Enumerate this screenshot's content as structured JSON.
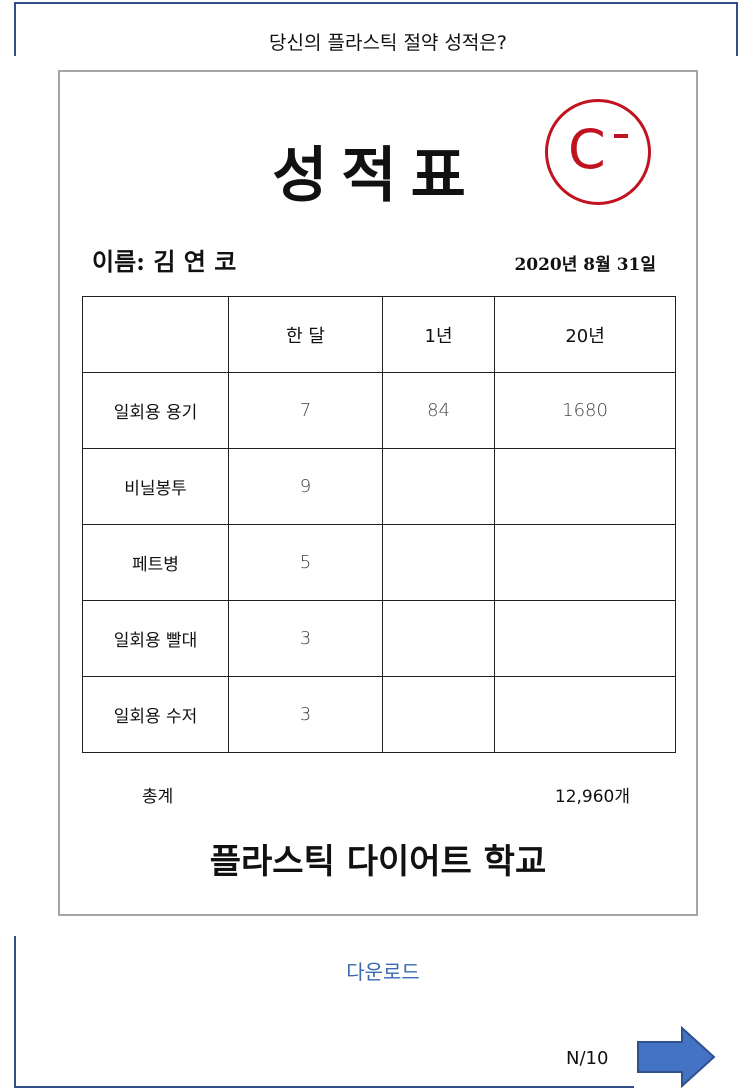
{
  "header": {
    "title": "당신의 플라스틱 절약 성적은?"
  },
  "report": {
    "title": "성적표",
    "grade": "C",
    "name_label": "이름: 김 연 코",
    "date": "2020년 8월 31일",
    "columns": [
      "",
      "한 달",
      "1년",
      "20년"
    ],
    "rows": [
      {
        "label": "일회용 용기",
        "cells": [
          "7",
          "84",
          "1680"
        ]
      },
      {
        "label": "비닐봉투",
        "cells": [
          "9",
          "",
          ""
        ]
      },
      {
        "label": "페트병",
        "cells": [
          "5",
          "",
          ""
        ]
      },
      {
        "label": "일회용 빨대",
        "cells": [
          "3",
          "",
          ""
        ]
      },
      {
        "label": "일회용 수저",
        "cells": [
          "3",
          "",
          ""
        ]
      }
    ],
    "total_label": "총계",
    "total_value": "12,960개",
    "school": "플라스틱 다이어트 학교"
  },
  "actions": {
    "download_label": "다운로드"
  },
  "pager": {
    "text": "N/10"
  },
  "colors": {
    "frame": "#2f4f86",
    "grade": "#c1121f",
    "link": "#3a6ab0",
    "arrow": "#4472c4"
  }
}
